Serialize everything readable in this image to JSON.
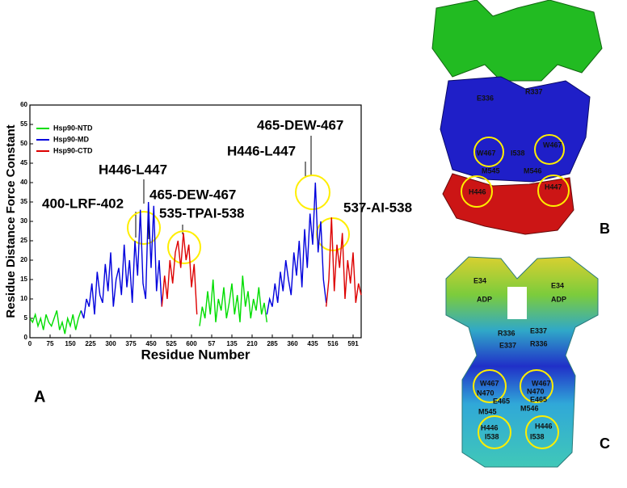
{
  "chart_data": {
    "type": "line",
    "y_label": "Residue Distance Force Constant",
    "x_label": "Residue Number",
    "xlim": [
      0,
      1230
    ],
    "ylim": [
      0,
      60
    ],
    "yticks": [
      0,
      5,
      10,
      15,
      20,
      25,
      30,
      35,
      40,
      45,
      50,
      55,
      60
    ],
    "xticks": [
      0,
      75,
      150,
      225,
      300,
      375,
      450,
      525,
      600,
      {
        "value": 675,
        "label": "57"
      },
      {
        "value": 750,
        "label": "135"
      },
      {
        "value": 825,
        "label": "210"
      },
      {
        "value": 900,
        "label": "285"
      },
      {
        "value": 975,
        "label": "360"
      },
      {
        "value": 1050,
        "label": "435"
      },
      {
        "value": 1125,
        "label": "516"
      },
      {
        "value": 1200,
        "label": "591"
      }
    ],
    "legend": "upper left",
    "series": [
      {
        "name": "Hsp90-NTD",
        "color": "#00dd00",
        "x": [
          0,
          10,
          20,
          30,
          40,
          50,
          60,
          70,
          80,
          90,
          100,
          110,
          120,
          130,
          140,
          150,
          160,
          170,
          180,
          190,
          400,
          630,
          640,
          650,
          660,
          670,
          680,
          690,
          700,
          710,
          720,
          730,
          740,
          750,
          760,
          770,
          780,
          790,
          800,
          810,
          820,
          830,
          840,
          850,
          860,
          870,
          880
        ],
        "values": [
          5,
          4,
          6,
          3,
          5,
          2,
          6,
          4,
          3,
          5,
          7,
          2,
          4,
          1,
          5,
          3,
          6,
          2,
          5,
          7,
          null,
          3,
          8,
          5,
          12,
          6,
          15,
          4,
          10,
          7,
          13,
          5,
          9,
          14,
          6,
          11,
          4,
          16,
          8,
          12,
          5,
          10,
          7,
          13,
          6,
          9,
          4
        ]
      },
      {
        "name": "Hsp90-MD",
        "color": "#0000dd",
        "x": [
          190,
          200,
          210,
          220,
          230,
          240,
          250,
          260,
          270,
          280,
          290,
          300,
          310,
          320,
          330,
          340,
          350,
          360,
          370,
          380,
          390,
          400,
          410,
          420,
          430,
          440,
          450,
          460,
          470,
          480,
          490,
          700,
          880,
          890,
          900,
          910,
          920,
          930,
          940,
          950,
          960,
          970,
          980,
          990,
          1000,
          1010,
          1020,
          1030,
          1040,
          1050,
          1060,
          1070,
          1080,
          1090,
          1100
        ],
        "values": [
          7,
          5,
          10,
          8,
          14,
          6,
          17,
          11,
          9,
          19,
          12,
          22,
          8,
          15,
          18,
          11,
          24,
          13,
          20,
          9,
          25,
          16,
          33,
          14,
          10,
          35,
          18,
          34,
          12,
          20,
          8,
          null,
          6,
          10,
          8,
          14,
          9,
          17,
          12,
          20,
          15,
          11,
          22,
          16,
          25,
          13,
          28,
          18,
          32,
          24,
          40,
          22,
          30,
          15,
          9
        ]
      },
      {
        "name": "Hsp90-CTD",
        "color": "#dd0000",
        "x": [
          490,
          500,
          510,
          520,
          530,
          540,
          550,
          560,
          570,
          580,
          590,
          600,
          610,
          620,
          800,
          1100,
          1110,
          1120,
          1130,
          1140,
          1150,
          1160,
          1170,
          1180,
          1190,
          1200,
          1210,
          1220,
          1230
        ],
        "values": [
          8,
          16,
          10,
          20,
          14,
          22,
          25,
          18,
          27,
          20,
          24,
          13,
          19,
          6,
          null,
          8,
          15,
          31,
          12,
          24,
          18,
          27,
          10,
          20,
          14,
          22,
          9,
          14,
          11
        ]
      }
    ],
    "annotations": [
      "400-LRF-402",
      "H446-L447",
      "465-DEW-467",
      "535-TPAI-538",
      "465-DEW-467",
      "H446-L447",
      "537-AI-538"
    ]
  },
  "figure": {
    "panel_labels": [
      "A",
      "B",
      "C"
    ],
    "panel_b_labels": [
      "E336",
      "R337",
      "W467",
      "W467",
      "M545",
      "M546",
      "I538",
      "H446",
      "H447"
    ],
    "panel_c_labels": [
      "E34",
      "E34",
      "ADP",
      "ADP",
      "R336",
      "E337",
      "E337",
      "R336",
      "W467",
      "W467",
      "N470",
      "N470",
      "E465",
      "E465",
      "M546",
      "M545",
      "H446",
      "H446",
      "I538",
      "I538"
    ]
  }
}
